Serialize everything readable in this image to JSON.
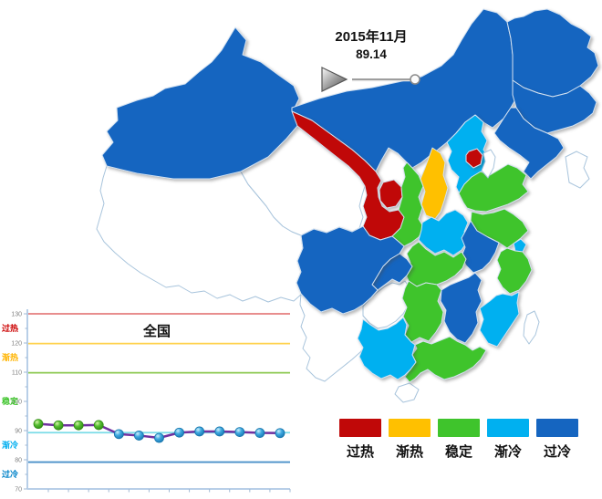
{
  "timeline": {
    "date_label": "2015年11月",
    "value": "89.14"
  },
  "legend": {
    "items": [
      {
        "label": "过热",
        "key": "hot",
        "color": "#C00808"
      },
      {
        "label": "渐热",
        "key": "warm",
        "color": "#FFC000"
      },
      {
        "label": "稳定",
        "key": "stable",
        "color": "#3FC42C"
      },
      {
        "label": "渐冷",
        "key": "cooling",
        "color": "#00B0F0"
      },
      {
        "label": "过冷",
        "key": "cold",
        "color": "#1565C0"
      }
    ]
  },
  "map": {
    "provinces": {
      "xinjiang": "cold",
      "tibet": "none",
      "qinghai": "none",
      "gansu": "hot",
      "ningxia": "hot",
      "neimenggu": "cold",
      "heilongjiang": "cold",
      "jilin": "cold",
      "liaoning": "cold",
      "beijing": "hot",
      "tianjin": "none",
      "hebei": "cooling",
      "shanxi": "warm",
      "shaanxi": "stable",
      "shandong": "stable",
      "henan": "cooling",
      "jiangsu": "stable",
      "anhui": "cold",
      "shanghai": "cooling",
      "zhejiang": "stable",
      "hubei": "stable",
      "chongqing": "cold",
      "sichuan": "cold",
      "guizhou": "none",
      "yunnan": "none",
      "hunan": "stable",
      "jiangxi": "cold",
      "fujian": "cooling",
      "guangdong": "stable",
      "guangxi": "cooling",
      "hainan": "none",
      "taiwan": "none",
      "korea": "none"
    }
  },
  "chart_data": {
    "type": "line",
    "title": "全国",
    "ylim": [
      70,
      130
    ],
    "yticks": [
      130,
      120,
      110,
      100,
      90,
      80,
      70
    ],
    "x_count": 13,
    "values": [
      92.3,
      91.8,
      91.8,
      91.9,
      88.8,
      88.3,
      87.5,
      89.3,
      89.7,
      89.7,
      89.5,
      89.2,
      89.14
    ],
    "point_categories": [
      "stable",
      "stable",
      "stable",
      "stable",
      "cooling",
      "cooling",
      "cooling",
      "cooling",
      "cooling",
      "cooling",
      "cooling",
      "cooling",
      "cooling"
    ],
    "series_color": "#7030A0",
    "grid": false,
    "legend_position": "none",
    "reference_lines": [
      {
        "value": 130,
        "color": "#E57E7E"
      },
      {
        "value": 119.8,
        "color": "#FFD24D"
      },
      {
        "value": 109.8,
        "color": "#8CC850"
      },
      {
        "value": 89.3,
        "color": "#7ADCE8"
      },
      {
        "value": 79.2,
        "color": "#4A90C8"
      }
    ],
    "zone_labels": [
      {
        "label": "过热",
        "color": "#CC0000",
        "at": 125
      },
      {
        "label": "渐热",
        "color": "#FFB400",
        "at": 115
      },
      {
        "label": "稳定",
        "color": "#3FC42C",
        "at": 100
      },
      {
        "label": "渐冷",
        "color": "#00AEEF",
        "at": 85
      },
      {
        "label": "过冷",
        "color": "#0082C8",
        "at": 75
      }
    ]
  }
}
